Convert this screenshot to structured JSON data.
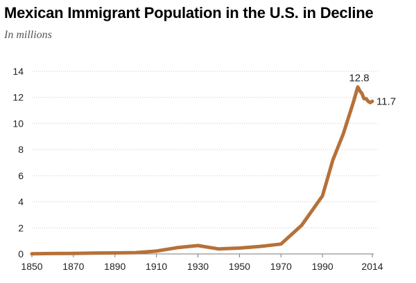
{
  "chart_data": {
    "type": "line",
    "title": "Mexican Immigrant Population in the U.S. in Decline",
    "subtitle": "In millions",
    "xlabel": "",
    "ylabel": "",
    "xlim": [
      1850,
      2014
    ],
    "ylim": [
      0,
      14
    ],
    "x_ticks": [
      1850,
      1870,
      1890,
      1910,
      1930,
      1950,
      1970,
      1990,
      2014
    ],
    "y_ticks": [
      0,
      2,
      4,
      6,
      8,
      10,
      12,
      14
    ],
    "grid": "horizontal dotted",
    "series": [
      {
        "color": "#b5713a",
        "x": [
          1850,
          1860,
          1870,
          1880,
          1890,
          1900,
          1910,
          1920,
          1930,
          1940,
          1950,
          1960,
          1970,
          1980,
          1990,
          1995,
          2000,
          2005,
          2007,
          2008,
          2009,
          2010,
          2011,
          2012,
          2013,
          2014
        ],
        "y": [
          0.01,
          0.03,
          0.04,
          0.07,
          0.08,
          0.1,
          0.22,
          0.48,
          0.64,
          0.38,
          0.45,
          0.58,
          0.76,
          2.2,
          4.45,
          7.2,
          9.2,
          11.7,
          12.8,
          12.5,
          12.3,
          11.9,
          11.9,
          11.7,
          11.6,
          11.7
        ]
      }
    ],
    "annotations": [
      {
        "label": "12.8",
        "x": 2007,
        "y": 12.8
      },
      {
        "label": "11.7",
        "x": 2014,
        "y": 11.7
      }
    ]
  }
}
